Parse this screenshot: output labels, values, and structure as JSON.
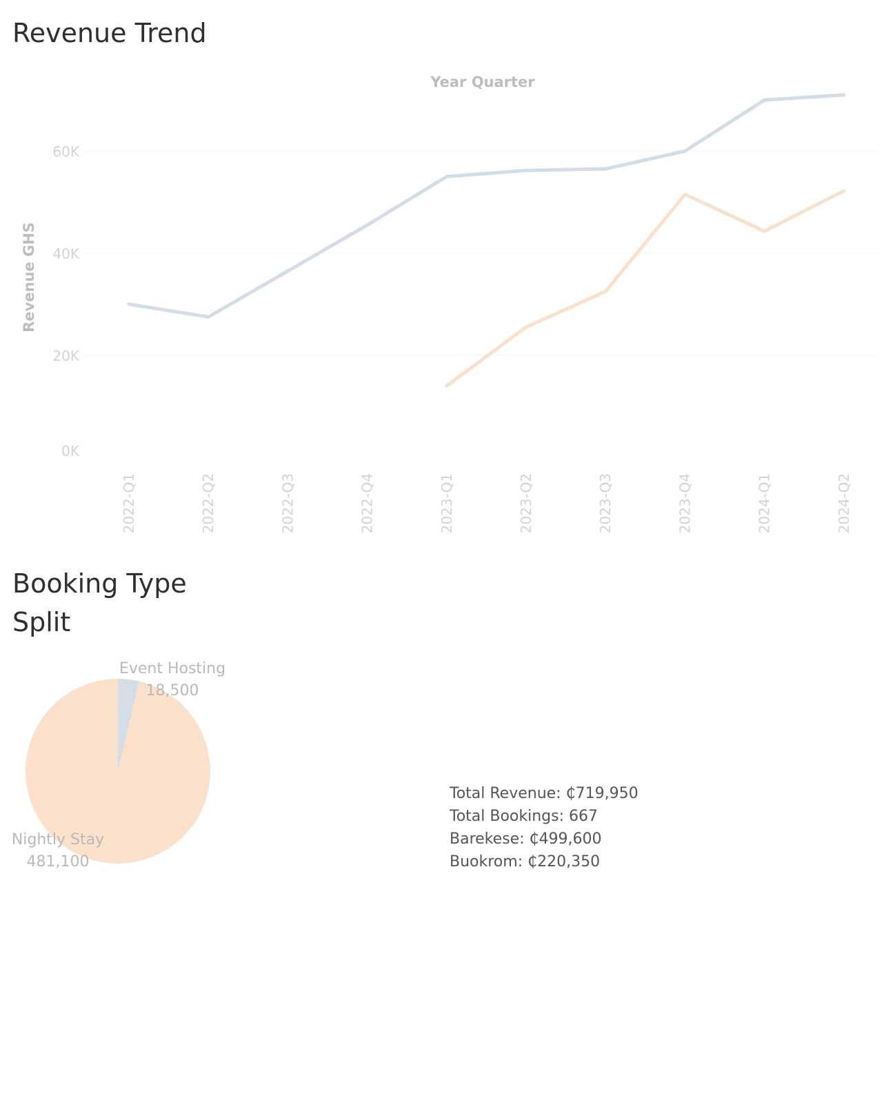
{
  "titles": {
    "trend": "Revenue Trend",
    "pie": "Booking Type Split"
  },
  "colors": {
    "series_blue": "#d4dde7",
    "series_orange": "#fbe1cb",
    "axis_text": "#d3d3d3",
    "grid": "#f6f6f6"
  },
  "chart_data": [
    {
      "type": "line",
      "title": "Revenue Trend",
      "xlabel": "Year Quarter",
      "ylabel": "Revenue GHS",
      "categories": [
        "2022-Q1",
        "2022-Q2",
        "2022-Q3",
        "2022-Q4",
        "2023-Q1",
        "2023-Q2",
        "2023-Q3",
        "2023-Q4",
        "2024-Q1",
        "2024-Q2"
      ],
      "yticks": [
        "0K",
        "20K",
        "40K",
        "60K"
      ],
      "ylim": [
        0,
        70000
      ],
      "grid": true,
      "series": [
        {
          "color": "#d4dde7",
          "values": [
            30000,
            27500,
            36500,
            45500,
            55000,
            56200,
            56500,
            60000,
            70000,
            71000
          ]
        },
        {
          "color": "#fbe1cb",
          "values": [
            null,
            null,
            null,
            null,
            14000,
            25500,
            32500,
            51500,
            44300,
            52200
          ]
        }
      ]
    },
    {
      "type": "pie",
      "title": "Booking Type Split",
      "slices": [
        {
          "label": "Event Hosting",
          "value": 18500,
          "value_label": "18,500",
          "color": "#d4dde7"
        },
        {
          "label": "Nightly Stay",
          "value": 481100,
          "value_label": "481,100",
          "color": "#fbe1cb"
        }
      ]
    }
  ],
  "summary": {
    "total_revenue": "Total Revenue: ₵719,950",
    "total_bookings": "Total Bookings: 667",
    "barekese": "Barekese: ₵499,600",
    "buokrom": "Buokrom: ₵220,350"
  }
}
